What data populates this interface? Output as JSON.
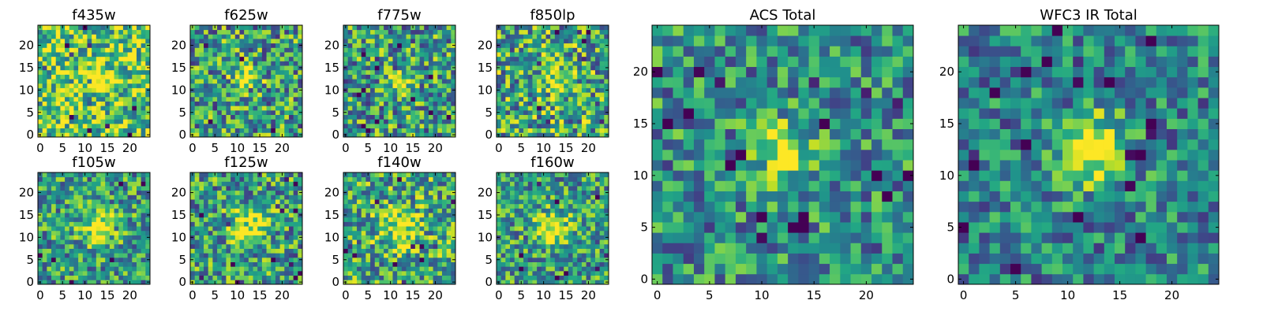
{
  "chart_data": [
    {
      "type": "heatmap",
      "title": "f435w",
      "xlim": [
        0,
        24
      ],
      "ylim": [
        0,
        24
      ],
      "xticks": [
        "0",
        "5",
        "10",
        "15",
        "20"
      ],
      "yticks": [
        "0",
        "5",
        "10",
        "15",
        "20"
      ],
      "colormap": "viridis",
      "grid": false,
      "peak": [
        12.5,
        13
      ],
      "peak_strength": 0.25,
      "peak_width": 2.5,
      "base_level": 0.72,
      "noise_level": 0.38
    },
    {
      "type": "heatmap",
      "title": "f625w",
      "xlim": [
        0,
        24
      ],
      "ylim": [
        0,
        24
      ],
      "xticks": [
        "0",
        "5",
        "10",
        "15",
        "20"
      ],
      "yticks": [
        "0",
        "5",
        "10",
        "15",
        "20"
      ],
      "colormap": "viridis",
      "grid": false,
      "peak": [
        12,
        12
      ],
      "peak_strength": 0.5,
      "peak_width": 2.0,
      "base_level": 0.55,
      "noise_level": 0.4
    },
    {
      "type": "heatmap",
      "title": "f775w",
      "xlim": [
        0,
        24
      ],
      "ylim": [
        0,
        24
      ],
      "xticks": [
        "0",
        "5",
        "10",
        "15",
        "20"
      ],
      "yticks": [
        "0",
        "5",
        "10",
        "15",
        "20"
      ],
      "colormap": "viridis",
      "grid": false,
      "peak": [
        12,
        12
      ],
      "peak_strength": 0.5,
      "peak_width": 2.0,
      "base_level": 0.55,
      "noise_level": 0.4
    },
    {
      "type": "heatmap",
      "title": "f850lp",
      "xlim": [
        0,
        24
      ],
      "ylim": [
        0,
        24
      ],
      "xticks": [
        "0",
        "5",
        "10",
        "15",
        "20"
      ],
      "yticks": [
        "0",
        "5",
        "10",
        "15",
        "20"
      ],
      "colormap": "viridis",
      "grid": false,
      "peak": [
        13,
        12
      ],
      "peak_strength": 0.35,
      "peak_width": 2.2,
      "base_level": 0.6,
      "noise_level": 0.42
    },
    {
      "type": "heatmap",
      "title": "f105w",
      "xlim": [
        0,
        24
      ],
      "ylim": [
        0,
        24
      ],
      "xticks": [
        "0",
        "5",
        "10",
        "15",
        "20"
      ],
      "yticks": [
        "0",
        "5",
        "10",
        "15",
        "20"
      ],
      "colormap": "viridis",
      "grid": false,
      "peak": [
        13,
        12
      ],
      "peak_strength": 0.45,
      "peak_width": 2.5,
      "base_level": 0.55,
      "noise_level": 0.35
    },
    {
      "type": "heatmap",
      "title": "f125w",
      "xlim": [
        0,
        24
      ],
      "ylim": [
        0,
        24
      ],
      "xticks": [
        "0",
        "5",
        "10",
        "15",
        "20"
      ],
      "yticks": [
        "0",
        "5",
        "10",
        "15",
        "20"
      ],
      "colormap": "viridis",
      "grid": false,
      "peak": [
        12.5,
        12.5
      ],
      "peak_strength": 0.45,
      "peak_width": 3.0,
      "base_level": 0.55,
      "noise_level": 0.38
    },
    {
      "type": "heatmap",
      "title": "f140w",
      "xlim": [
        0,
        24
      ],
      "ylim": [
        0,
        24
      ],
      "xticks": [
        "0",
        "5",
        "10",
        "15",
        "20"
      ],
      "yticks": [
        "0",
        "5",
        "10",
        "15",
        "20"
      ],
      "colormap": "viridis",
      "grid": false,
      "peak": [
        12,
        12
      ],
      "peak_strength": 0.35,
      "peak_width": 3.0,
      "base_level": 0.6,
      "noise_level": 0.38
    },
    {
      "type": "heatmap",
      "title": "f160w",
      "xlim": [
        0,
        24
      ],
      "ylim": [
        0,
        24
      ],
      "xticks": [
        "0",
        "5",
        "10",
        "15",
        "20"
      ],
      "yticks": [
        "0",
        "5",
        "10",
        "15",
        "20"
      ],
      "colormap": "viridis",
      "grid": false,
      "peak": [
        12,
        12
      ],
      "peak_strength": 0.45,
      "peak_width": 2.8,
      "base_level": 0.55,
      "noise_level": 0.35
    },
    {
      "type": "heatmap",
      "title": "ACS Total",
      "xlim": [
        0,
        24
      ],
      "ylim": [
        0,
        24
      ],
      "xticks": [
        "0",
        "5",
        "10",
        "15",
        "20"
      ],
      "yticks": [
        "0",
        "5",
        "10",
        "15",
        "20"
      ],
      "colormap": "viridis",
      "grid": false,
      "peak": [
        12,
        12.5
      ],
      "peak_strength": 0.55,
      "peak_width": 1.8,
      "base_level": 0.5,
      "noise_level": 0.33
    },
    {
      "type": "heatmap",
      "title": "WFC3 IR Total",
      "xlim": [
        0,
        24
      ],
      "ylim": [
        0,
        24
      ],
      "xticks": [
        "0",
        "5",
        "10",
        "15",
        "20"
      ],
      "yticks": [
        "0",
        "5",
        "10",
        "15",
        "20"
      ],
      "colormap": "viridis",
      "grid": false,
      "peak": [
        12.5,
        12.5
      ],
      "peak_strength": 0.55,
      "peak_width": 2.6,
      "base_level": 0.45,
      "noise_level": 0.3
    }
  ]
}
